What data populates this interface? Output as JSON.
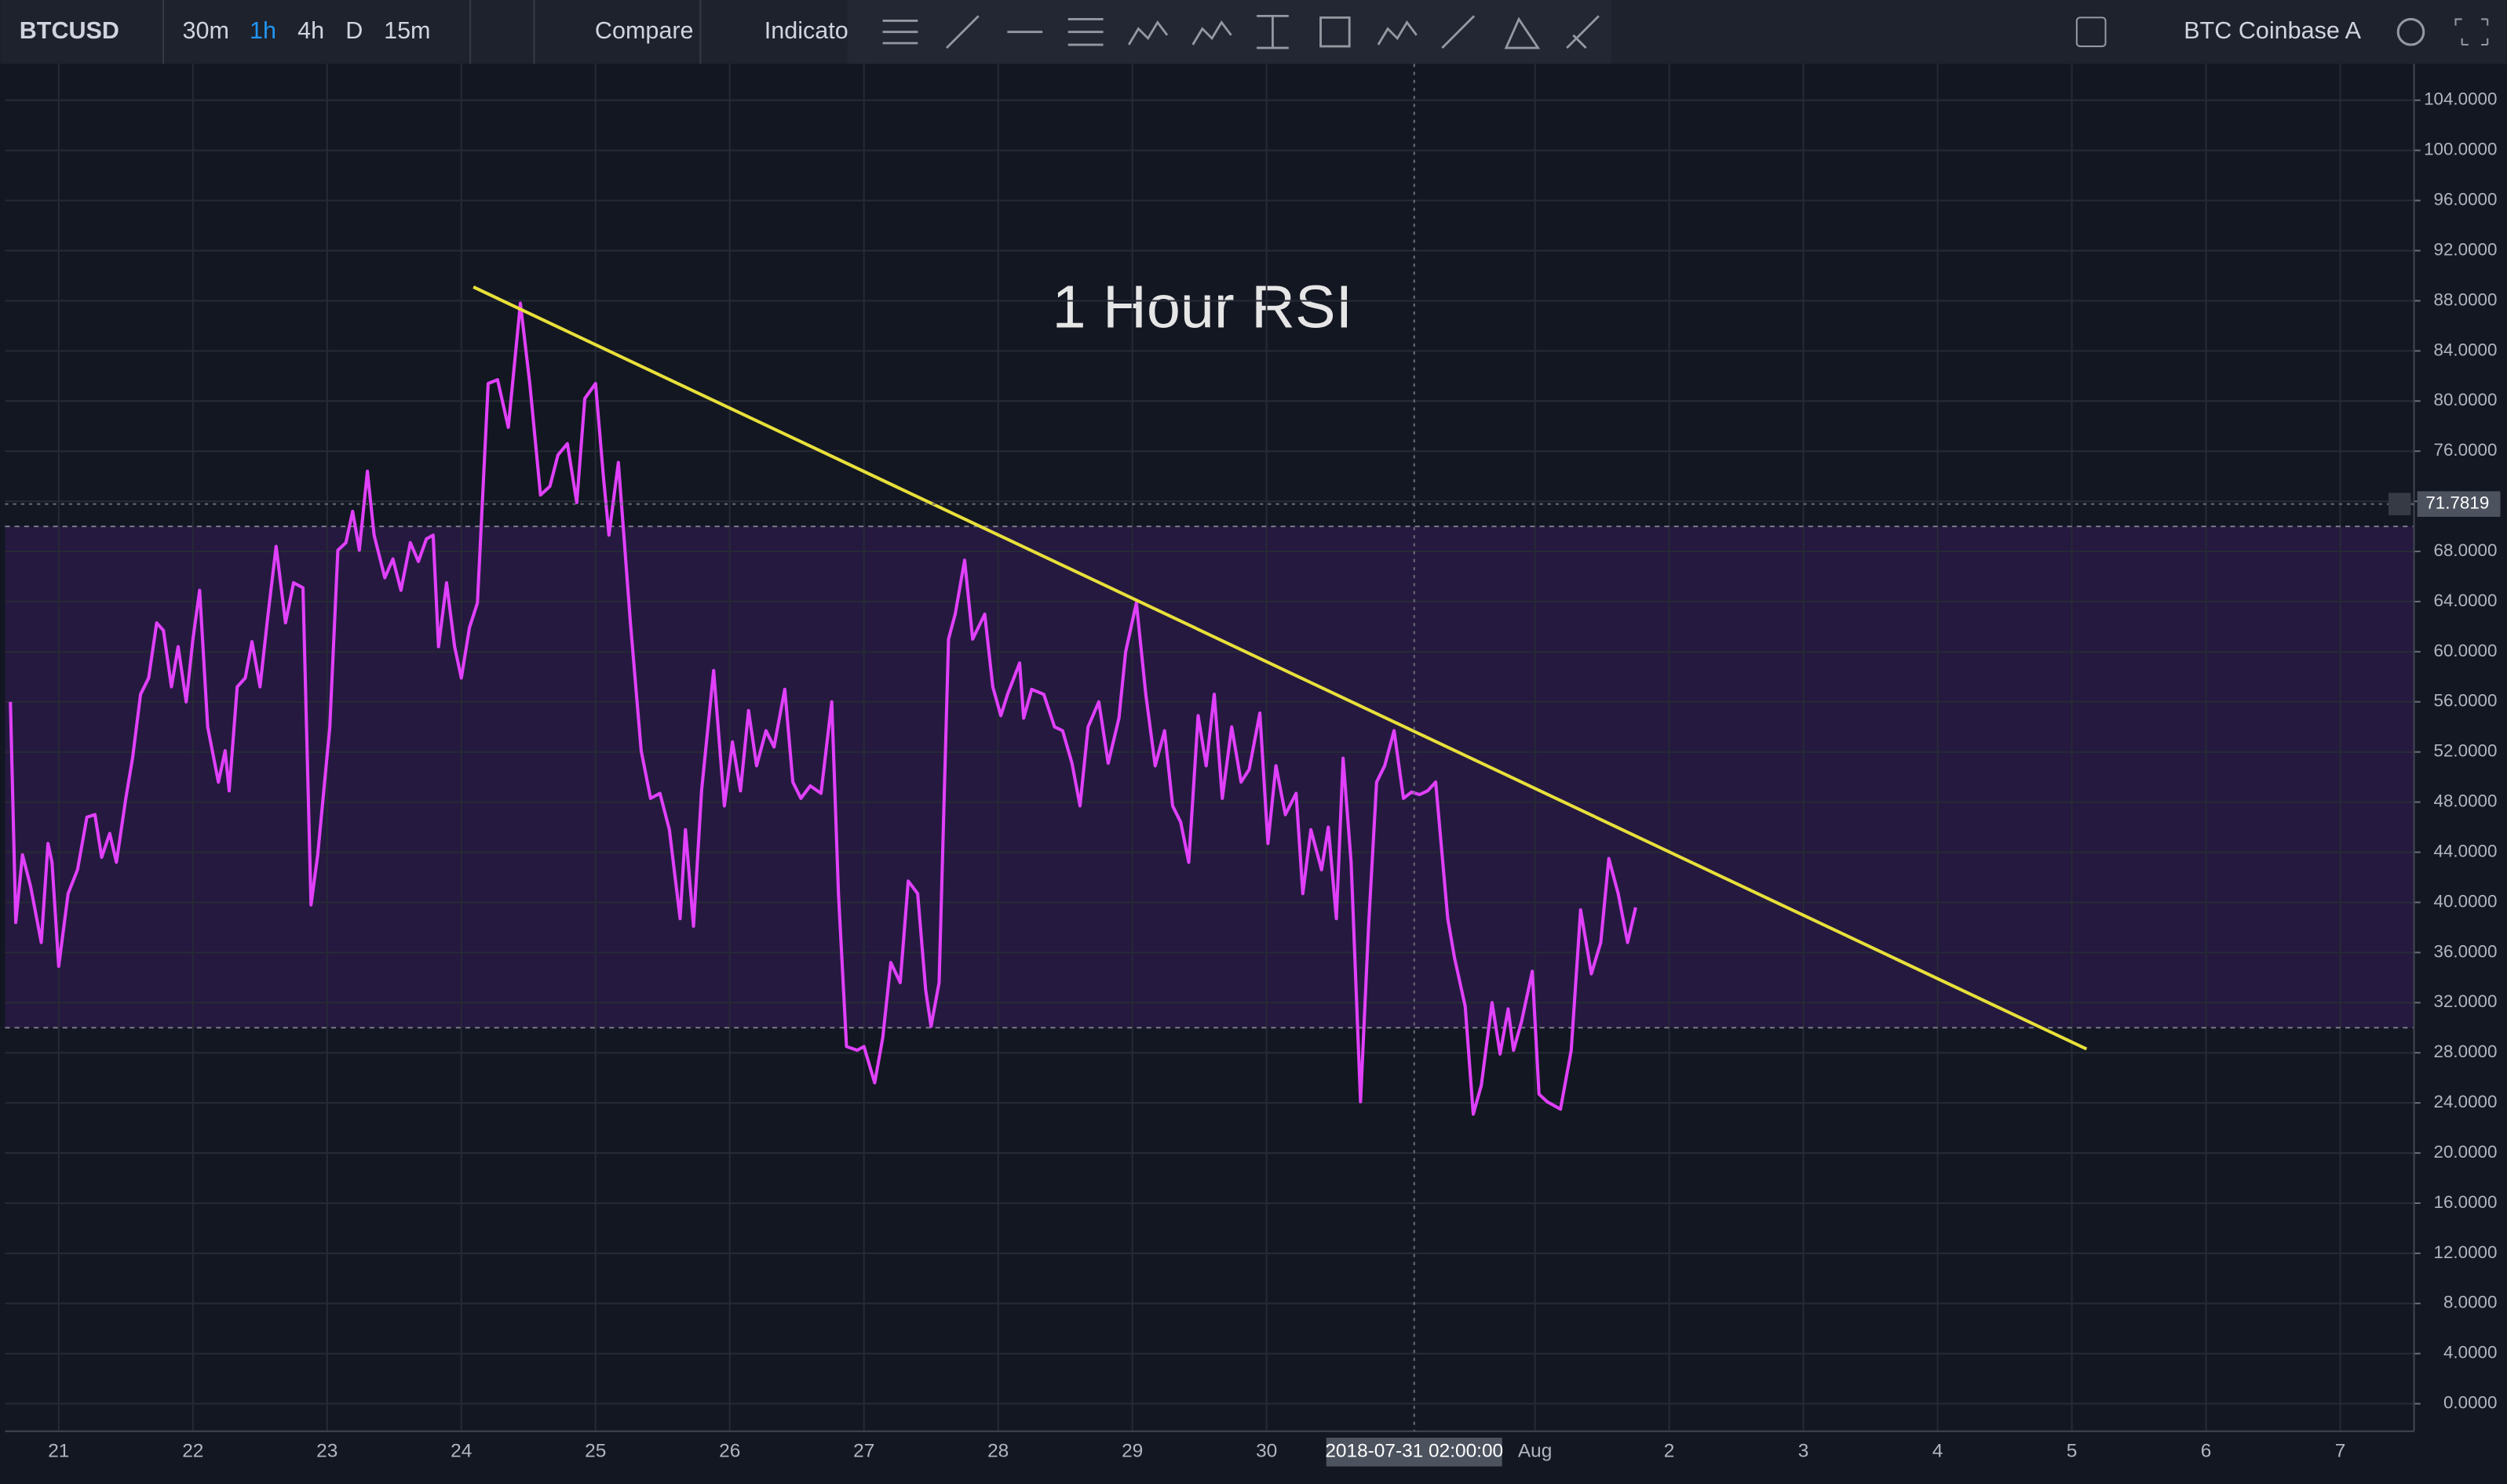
{
  "toolbar": {
    "symbol": "BTCUSD",
    "intervals": [
      "30m",
      "1h",
      "4h",
      "D",
      "15m"
    ],
    "compare": "Compare",
    "indicators": "Indicato",
    "source": "BTC Coinbase A"
  },
  "chart_data": {
    "type": "line",
    "title": "1 Hour RSI",
    "x": [
      20.64,
      20.68,
      20.73,
      20.79,
      20.87,
      20.92,
      20.95,
      21.0,
      21.07,
      21.14,
      21.21,
      21.27,
      21.32,
      21.38,
      21.43,
      21.5,
      21.55,
      21.61,
      21.67,
      21.73,
      21.78,
      21.84,
      21.89,
      21.95,
      22.0,
      22.05,
      22.11,
      22.19,
      22.24,
      22.27,
      22.33,
      22.39,
      22.44,
      22.5,
      22.56,
      22.62,
      22.69,
      22.75,
      22.82,
      22.88,
      22.93,
      23.02,
      23.08,
      23.14,
      23.19,
      23.24,
      23.3,
      23.35,
      23.43,
      23.49,
      23.55,
      23.62,
      23.68,
      23.74,
      23.79,
      23.83,
      23.89,
      23.95,
      24.0,
      24.06,
      24.12,
      24.2,
      24.27,
      24.35,
      24.44,
      24.51,
      24.59,
      24.66,
      24.72,
      24.79,
      24.86,
      24.92,
      25.0,
      25.06,
      25.1,
      25.17,
      25.26,
      25.34,
      25.41,
      25.48,
      25.55,
      25.63,
      25.67,
      25.73,
      25.79,
      25.88,
      25.96,
      26.02,
      26.08,
      26.14,
      26.2,
      26.27,
      26.33,
      26.41,
      26.47,
      26.53,
      26.6,
      26.68,
      26.76,
      26.81,
      26.87,
      26.95,
      27.0,
      27.08,
      27.14,
      27.2,
      27.27,
      27.33,
      27.4,
      27.46,
      27.5,
      27.56,
      27.63,
      27.68,
      27.75,
      27.81,
      27.9,
      27.96,
      28.02,
      28.07,
      28.16,
      28.19,
      28.25,
      28.34,
      28.42,
      28.48,
      28.55,
      28.61,
      28.67,
      28.75,
      28.82,
      28.9,
      28.95,
      29.03,
      29.1,
      29.17,
      29.24,
      29.3,
      29.36,
      29.42,
      29.49,
      29.55,
      29.61,
      29.67,
      29.74,
      29.81,
      29.87,
      29.95,
      30.01,
      30.07,
      30.14,
      30.22,
      30.27,
      30.33,
      30.41,
      30.46,
      30.52,
      30.57,
      30.63,
      30.7,
      30.76,
      30.82,
      30.88,
      30.95,
      31.02,
      31.08,
      31.14,
      31.2,
      31.26,
      31.35,
      31.4,
      31.48,
      31.54,
      31.6,
      31.68,
      31.74,
      31.8,
      31.84,
      31.9,
      31.98,
      32.03,
      32.09,
      32.19,
      32.27,
      32.34,
      32.42,
      32.49,
      32.55,
      32.62,
      32.69,
      32.75
    ],
    "series": [
      {
        "color": "#e040fb",
        "values": [
          56.0,
          38.4,
          43.8,
          41.3,
          36.8,
          44.7,
          43.2,
          34.9,
          40.7,
          42.6,
          46.8,
          47.0,
          43.6,
          45.5,
          43.2,
          48.3,
          51.5,
          56.6,
          57.9,
          62.3,
          61.7,
          57.2,
          60.4,
          56.0,
          61.0,
          64.9,
          54.0,
          49.6,
          52.1,
          48.9,
          57.2,
          57.9,
          60.8,
          57.2,
          63.0,
          68.4,
          62.3,
          65.5,
          65.1,
          39.8,
          43.8,
          54.0,
          68.1,
          68.7,
          71.2,
          68.1,
          74.4,
          69.3,
          65.9,
          67.4,
          64.9,
          68.7,
          67.2,
          69.0,
          69.3,
          60.4,
          65.5,
          60.4,
          57.9,
          61.9,
          63.9,
          81.4,
          81.7,
          77.9,
          87.8,
          81.4,
          72.5,
          73.2,
          75.7,
          76.6,
          71.9,
          80.2,
          81.4,
          73.8,
          69.3,
          75.1,
          62.3,
          52.1,
          48.3,
          48.7,
          45.8,
          38.7,
          45.8,
          38.1,
          48.9,
          58.5,
          47.7,
          52.8,
          48.9,
          55.3,
          50.9,
          53.7,
          52.4,
          57.0,
          49.6,
          48.3,
          49.3,
          48.7,
          56.0,
          40.7,
          28.5,
          28.2,
          28.5,
          25.6,
          29.2,
          35.2,
          33.6,
          41.7,
          40.7,
          33.0,
          30.1,
          33.6,
          61.0,
          63.0,
          67.3,
          61.0,
          63.0,
          57.2,
          54.9,
          56.6,
          59.1,
          54.7,
          57.0,
          56.6,
          54.0,
          53.7,
          51.1,
          47.7,
          54.0,
          56.0,
          51.1,
          54.7,
          60.0,
          63.9,
          56.6,
          50.9,
          53.7,
          47.7,
          46.4,
          43.2,
          54.9,
          50.9,
          56.6,
          48.3,
          54.0,
          49.6,
          50.6,
          55.1,
          44.7,
          50.9,
          47.0,
          48.7,
          40.7,
          45.8,
          42.6,
          46.0,
          38.7,
          51.5,
          43.2,
          24.1,
          38.1,
          49.6,
          50.9,
          53.7,
          48.3,
          48.8,
          48.6,
          48.9,
          49.6,
          38.7,
          35.6,
          31.7,
          23.1,
          25.4,
          32.0,
          27.9,
          31.5,
          28.2,
          30.5,
          34.5,
          24.7,
          24.1,
          23.5,
          28.2,
          39.4,
          34.3,
          36.8,
          43.5,
          40.7,
          36.8,
          39.6
        ]
      }
    ],
    "xlim": [
      20.6,
      38.55
    ],
    "xticks": [
      21,
      22,
      23,
      24,
      25,
      26,
      27,
      28,
      29,
      30,
      {
        "value": 32,
        "label": "Aug"
      },
      {
        "value": 33,
        "label": "2"
      },
      {
        "value": 34,
        "label": "3"
      },
      {
        "value": 35,
        "label": "4"
      },
      {
        "value": 36,
        "label": "5"
      },
      {
        "value": 37,
        "label": "6"
      },
      {
        "value": 38,
        "label": "7"
      }
    ],
    "ylim": [
      -2.2,
      106.9
    ],
    "yticks": [
      {
        "value": 0,
        "label": "0.0000"
      },
      {
        "value": 4,
        "label": "4.0000"
      },
      {
        "value": 8,
        "label": "8.0000"
      },
      {
        "value": 12,
        "label": "12.0000"
      },
      {
        "value": 16,
        "label": "16.0000"
      },
      {
        "value": 20,
        "label": "20.0000"
      },
      {
        "value": 24,
        "label": "24.0000"
      },
      {
        "value": 28,
        "label": "28.0000"
      },
      {
        "value": 32,
        "label": "32.0000"
      },
      {
        "value": 36,
        "label": "36.0000"
      },
      {
        "value": 40,
        "label": "40.0000"
      },
      {
        "value": 44,
        "label": "44.0000"
      },
      {
        "value": 48,
        "label": "48.0000"
      },
      {
        "value": 52,
        "label": "52.0000"
      },
      {
        "value": 56,
        "label": "56.0000"
      },
      {
        "value": 60,
        "label": "60.0000"
      },
      {
        "value": 64,
        "label": "64.0000"
      },
      {
        "value": 68,
        "label": "68.0000"
      },
      {
        "value": 72,
        "label": "72.0000"
      },
      {
        "value": 76,
        "label": "76.0000"
      },
      {
        "value": 80,
        "label": "80.0000"
      },
      {
        "value": 84,
        "label": "84.0000"
      },
      {
        "value": 88,
        "label": "88.0000"
      },
      {
        "value": 92,
        "label": "92.0000"
      },
      {
        "value": 96,
        "label": "96.0000"
      },
      {
        "value": 100,
        "label": "100.0000"
      },
      {
        "value": 104,
        "label": "104.0000"
      }
    ],
    "grid": true,
    "band": {
      "range": [
        30,
        70
      ],
      "color": "#2a1a48"
    },
    "trendline": {
      "x": [
        24.09,
        36.11
      ],
      "values": [
        89.1,
        28.3
      ],
      "color": "#e8e03a"
    },
    "crosshair": {
      "x": 31.1,
      "x_label": "2018-07-31 02:00:00",
      "y": 71.7819
    }
  }
}
